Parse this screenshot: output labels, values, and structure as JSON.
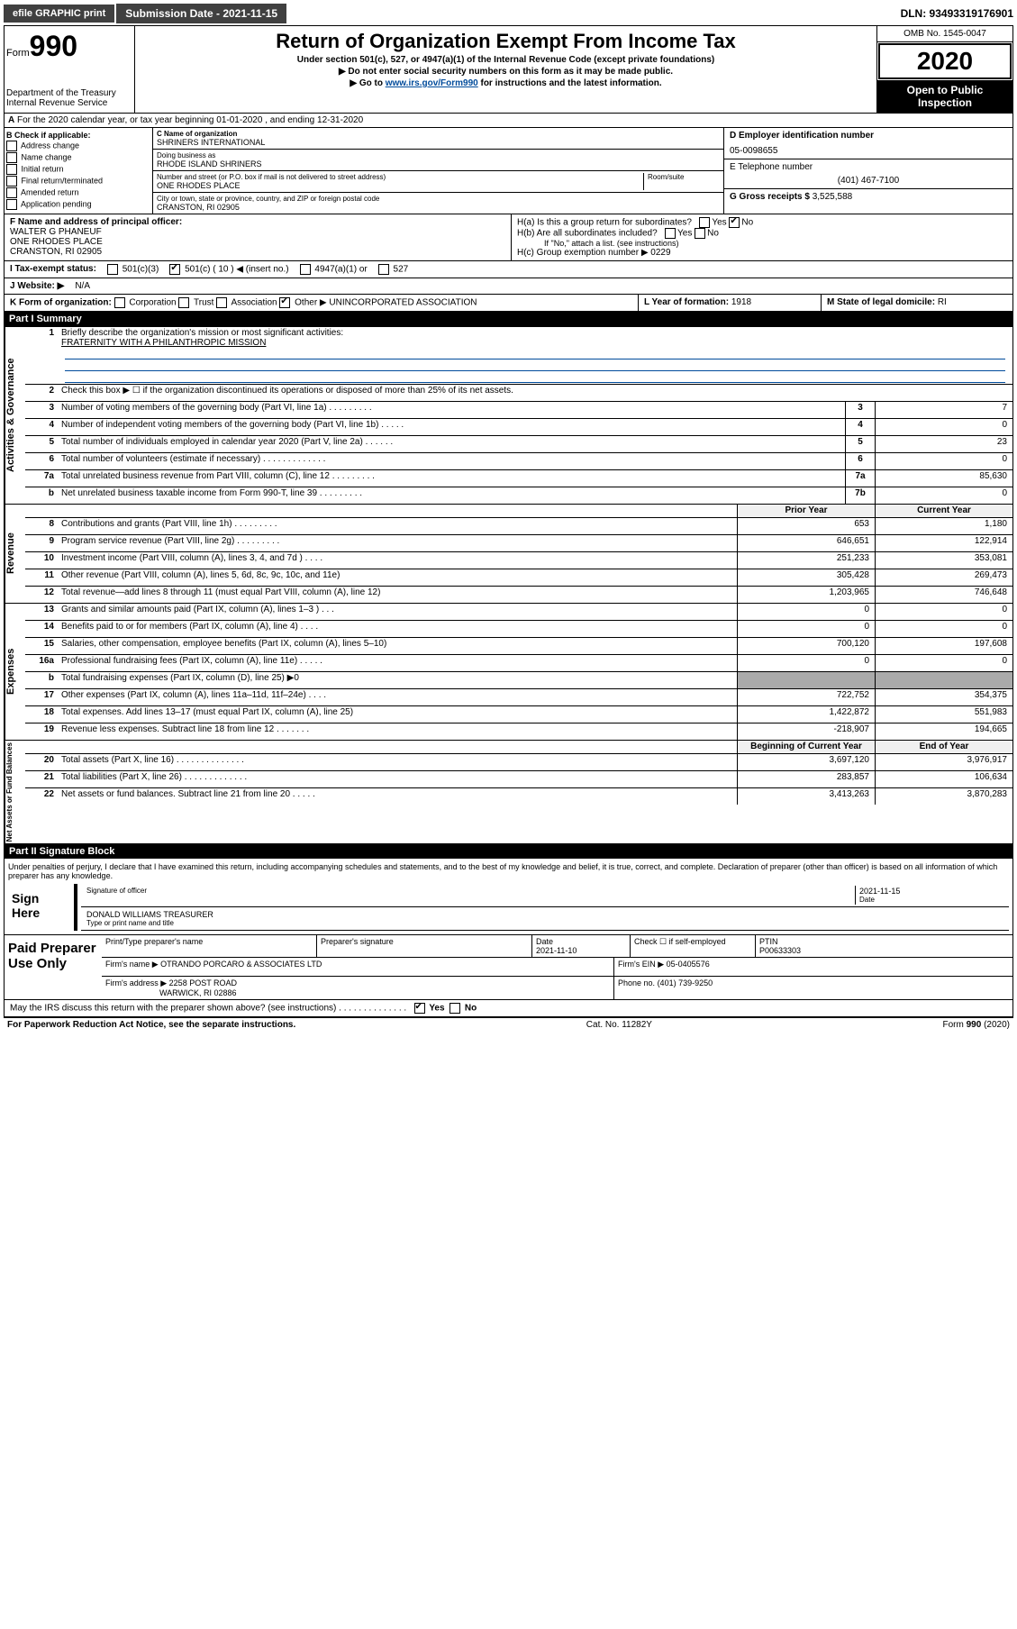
{
  "topbar": {
    "efile": "efile GRAPHIC print",
    "submission": "Submission Date - 2021-11-15",
    "dln": "DLN: 93493319176901"
  },
  "header": {
    "form_label": "Form",
    "form_num": "990",
    "dept": "Department of the Treasury\nInternal Revenue Service",
    "title": "Return of Organization Exempt From Income Tax",
    "sub1": "Under section 501(c), 527, or 4947(a)(1) of the Internal Revenue Code (except private foundations)",
    "sub2": "Do not enter social security numbers on this form as it may be made public.",
    "sub3_pre": "Go to ",
    "sub3_link": "www.irs.gov/Form990",
    "sub3_post": " for instructions and the latest information.",
    "omb": "OMB No. 1545-0047",
    "year": "2020",
    "open": "Open to Public Inspection"
  },
  "row_a": "For the 2020 calendar year, or tax year beginning 01-01-2020    , and ending 12-31-2020",
  "col_b": {
    "title": "B Check if applicable:",
    "opts": [
      "Address change",
      "Name change",
      "Initial return",
      "Final return/terminated",
      "Amended return",
      "Application pending"
    ]
  },
  "mid": {
    "c_label": "C Name of organization",
    "c_name": "SHRINERS INTERNATIONAL",
    "dba_label": "Doing business as",
    "dba": "RHODE ISLAND SHRINERS",
    "addr_label": "Number and street (or P.O. box if mail is not delivered to street address)",
    "room_label": "Room/suite",
    "addr": "ONE RHODES PLACE",
    "city_label": "City or town, state or province, country, and ZIP or foreign postal code",
    "city": "CRANSTON, RI  02905"
  },
  "deg": {
    "d_label": "D Employer identification number",
    "d_val": "05-0098655",
    "e_label": "E Telephone number",
    "e_val": "(401) 467-7100",
    "g_label": "G Gross receipts $",
    "g_val": "3,525,588"
  },
  "f": {
    "label": "F Name and address of principal officer:",
    "name": "WALTER G PHANEUF",
    "addr1": "ONE RHODES PLACE",
    "addr2": "CRANSTON, RI  02905"
  },
  "h": {
    "a": "H(a)  Is this a group return for subordinates?",
    "b": "H(b)  Are all subordinates included?",
    "b_note": "If \"No,\" attach a list. (see instructions)",
    "c": "H(c)  Group exemption number ▶   0229"
  },
  "i": {
    "label": "I   Tax-exempt status:",
    "opt1": "501(c)(3)",
    "opt2": "501(c) ( 10 ) ◀ (insert no.)",
    "opt3": "4947(a)(1) or",
    "opt4": "527"
  },
  "j": {
    "label": "J   Website: ▶",
    "val": "N/A"
  },
  "k": {
    "label": "K Form of organization:",
    "opts": [
      "Corporation",
      "Trust",
      "Association"
    ],
    "other": "Other ▶",
    "other_val": "UNINCORPORATED ASSOCIATION"
  },
  "l": {
    "label": "L Year of formation:",
    "val": "1918"
  },
  "m": {
    "label": "M State of legal domicile:",
    "val": "RI"
  },
  "part1": {
    "header": "Part I     Summary",
    "line1": "Briefly describe the organization's mission or most significant activities:",
    "line1_val": "FRATERNITY WITH A PHILANTHROPIC MISSION",
    "line2": "Check this box ▶ ☐  if the organization discontinued its operations or disposed of more than 25% of its net assets.",
    "gov_lines": [
      {
        "n": "3",
        "t": "Number of voting members of the governing body (Part VI, line 1a)  .    .    .    .    .    .    .    .    .",
        "b": "3",
        "v": "7"
      },
      {
        "n": "4",
        "t": "Number of independent voting members of the governing body (Part VI, line 1b)    .    .    .    .    .",
        "b": "4",
        "v": "0"
      },
      {
        "n": "5",
        "t": "Total number of individuals employed in calendar year 2020 (Part V, line 2a)    .    .    .    .    .    .",
        "b": "5",
        "v": "23"
      },
      {
        "n": "6",
        "t": "Total number of volunteers (estimate if necessary)    .    .    .    .    .    .    .    .    .    .    .    .    .",
        "b": "6",
        "v": "0"
      },
      {
        "n": "7a",
        "t": "Total unrelated business revenue from Part VIII, column (C), line 12   .    .    .    .    .    .    .    .    .",
        "b": "7a",
        "v": "85,630"
      },
      {
        "n": "b",
        "t": "Net unrelated business taxable income from Form 990-T, line 39    .    .    .    .    .    .    .    .    .",
        "b": "7b",
        "v": "0"
      }
    ],
    "col_head_prior": "Prior Year",
    "col_head_curr": "Current Year",
    "rev_lines": [
      {
        "n": "8",
        "t": "Contributions and grants (Part VIII, line 1h)    .    .    .    .    .    .    .    .    .",
        "p": "653",
        "c": "1,180"
      },
      {
        "n": "9",
        "t": "Program service revenue (Part VIII, line 2g)    .    .    .    .    .    .    .    .    .",
        "p": "646,651",
        "c": "122,914"
      },
      {
        "n": "10",
        "t": "Investment income (Part VIII, column (A), lines 3, 4, and 7d )    .    .    .    .",
        "p": "251,233",
        "c": "353,081"
      },
      {
        "n": "11",
        "t": "Other revenue (Part VIII, column (A), lines 5, 6d, 8c, 9c, 10c, and 11e)",
        "p": "305,428",
        "c": "269,473"
      },
      {
        "n": "12",
        "t": "Total revenue—add lines 8 through 11 (must equal Part VIII, column (A), line 12)",
        "p": "1,203,965",
        "c": "746,648"
      }
    ],
    "exp_lines": [
      {
        "n": "13",
        "t": "Grants and similar amounts paid (Part IX, column (A), lines 1–3 )    .    .    .",
        "p": "0",
        "c": "0"
      },
      {
        "n": "14",
        "t": "Benefits paid to or for members (Part IX, column (A), line 4)    .    .    .    .",
        "p": "0",
        "c": "0"
      },
      {
        "n": "15",
        "t": "Salaries, other compensation, employee benefits (Part IX, column (A), lines 5–10)",
        "p": "700,120",
        "c": "197,608"
      },
      {
        "n": "16a",
        "t": "Professional fundraising fees (Part IX, column (A), line 11e)    .    .    .    .    .",
        "p": "0",
        "c": "0"
      },
      {
        "n": "b",
        "t": "Total fundraising expenses (Part IX, column (D), line 25) ▶0",
        "shade": true
      },
      {
        "n": "17",
        "t": "Other expenses (Part IX, column (A), lines 11a–11d, 11f–24e)   .    .    .    .",
        "p": "722,752",
        "c": "354,375"
      },
      {
        "n": "18",
        "t": "Total expenses. Add lines 13–17 (must equal Part IX, column (A), line 25)",
        "p": "1,422,872",
        "c": "551,983"
      },
      {
        "n": "19",
        "t": "Revenue less expenses. Subtract line 18 from line 12   .    .    .    .    .    .    .",
        "p": "-218,907",
        "c": "194,665"
      }
    ],
    "col_head_beg": "Beginning of Current Year",
    "col_head_end": "End of Year",
    "na_lines": [
      {
        "n": "20",
        "t": "Total assets (Part X, line 16)   .    .    .    .    .    .    .    .    .    .    .    .    .    .",
        "p": "3,697,120",
        "c": "3,976,917"
      },
      {
        "n": "21",
        "t": "Total liabilities (Part X, line 26)    .    .    .    .    .    .    .    .    .    .    .    .    .",
        "p": "283,857",
        "c": "106,634"
      },
      {
        "n": "22",
        "t": "Net assets or fund balances. Subtract line 21 from line 20   .    .    .    .    .",
        "p": "3,413,263",
        "c": "3,870,283"
      }
    ]
  },
  "part2": {
    "header": "Part II     Signature Block",
    "perjury": "Under penalties of perjury, I declare that I have examined this return, including accompanying schedules and statements, and to the best of my knowledge and belief, it is true, correct, and complete. Declaration of preparer (other than officer) is based on all information of which preparer has any knowledge.",
    "sign_here": "Sign Here",
    "sig_officer": "Signature of officer",
    "sig_date": "2021-11-15",
    "date_label": "Date",
    "typed_name": "DONALD WILLIAMS  TREASURER",
    "typed_label": "Type or print name and title",
    "paid": "Paid Preparer Use Only",
    "prep_name_label": "Print/Type preparer's name",
    "prep_sig_label": "Preparer's signature",
    "prep_date": "2021-11-10",
    "check_self": "Check ☐ if self-employed",
    "ptin_label": "PTIN",
    "ptin": "P00633303",
    "firm_name_label": "Firm's name    ▶",
    "firm_name": "OTRANDO PORCARO & ASSOCIATES LTD",
    "firm_ein_label": "Firm's EIN ▶",
    "firm_ein": "05-0405576",
    "firm_addr_label": "Firm's address ▶",
    "firm_addr1": "2258 POST ROAD",
    "firm_addr2": "WARWICK, RI  02886",
    "phone_label": "Phone no.",
    "phone": "(401) 739-9250",
    "discuss": "May the IRS discuss this return with the preparer shown above? (see instructions)   .    .    .    .    .    .    .    .    .    .    .    .    .    .",
    "yes": "Yes",
    "no": "No"
  },
  "footer": {
    "left": "For Paperwork Reduction Act Notice, see the separate instructions.",
    "mid": "Cat. No. 11282Y",
    "right": "Form 990 (2020)"
  }
}
